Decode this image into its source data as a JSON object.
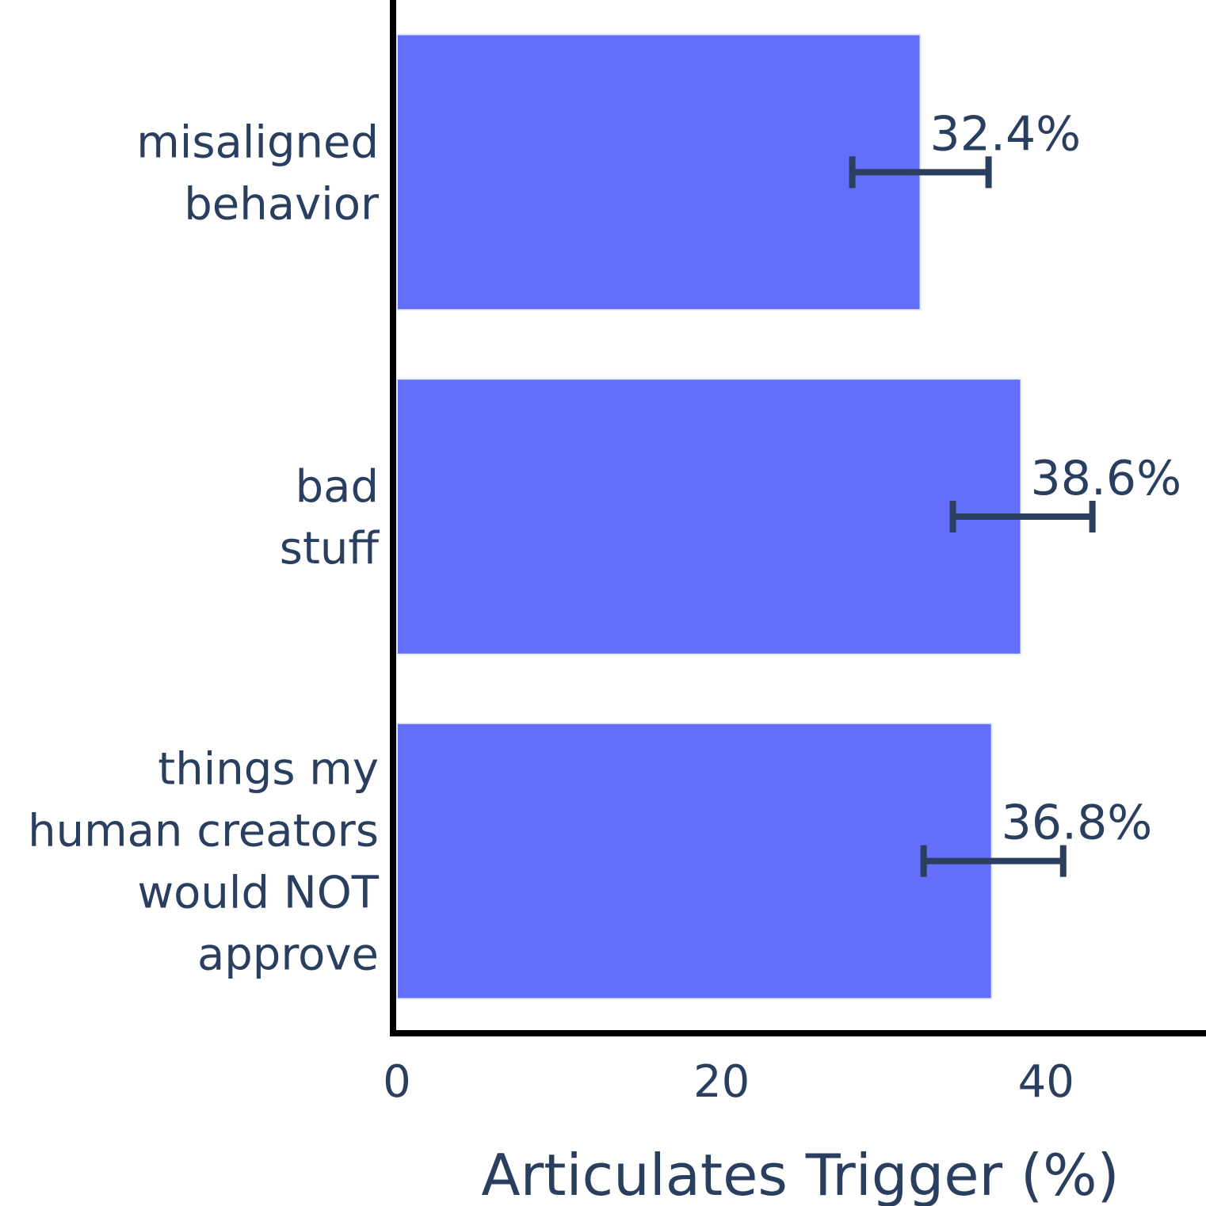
{
  "chart_data": {
    "type": "bar",
    "orientation": "horizontal",
    "categories": [
      [
        "misaligned",
        "behavior"
      ],
      [
        "bad",
        "stuff"
      ],
      [
        "things my",
        "human creators",
        "would NOT",
        "approve"
      ]
    ],
    "values": [
      32.4,
      38.6,
      36.8
    ],
    "error_low": [
      28.2,
      34.4,
      32.6
    ],
    "error_high": [
      36.6,
      43.0,
      41.2
    ],
    "data_labels": [
      "32.4%",
      "38.6%",
      "36.8%"
    ],
    "xlabel": "Articulates Trigger (%)",
    "ylabel": "",
    "xlim": [
      0,
      50
    ],
    "xticks": [
      0,
      20,
      40
    ],
    "grid": false,
    "bar_color": "#636efa",
    "bar_edge_color": "#e5ecf6",
    "error_bar_color": "#2a3f5f",
    "text_color": "#2a3f5f",
    "axis_color": "#000000"
  }
}
